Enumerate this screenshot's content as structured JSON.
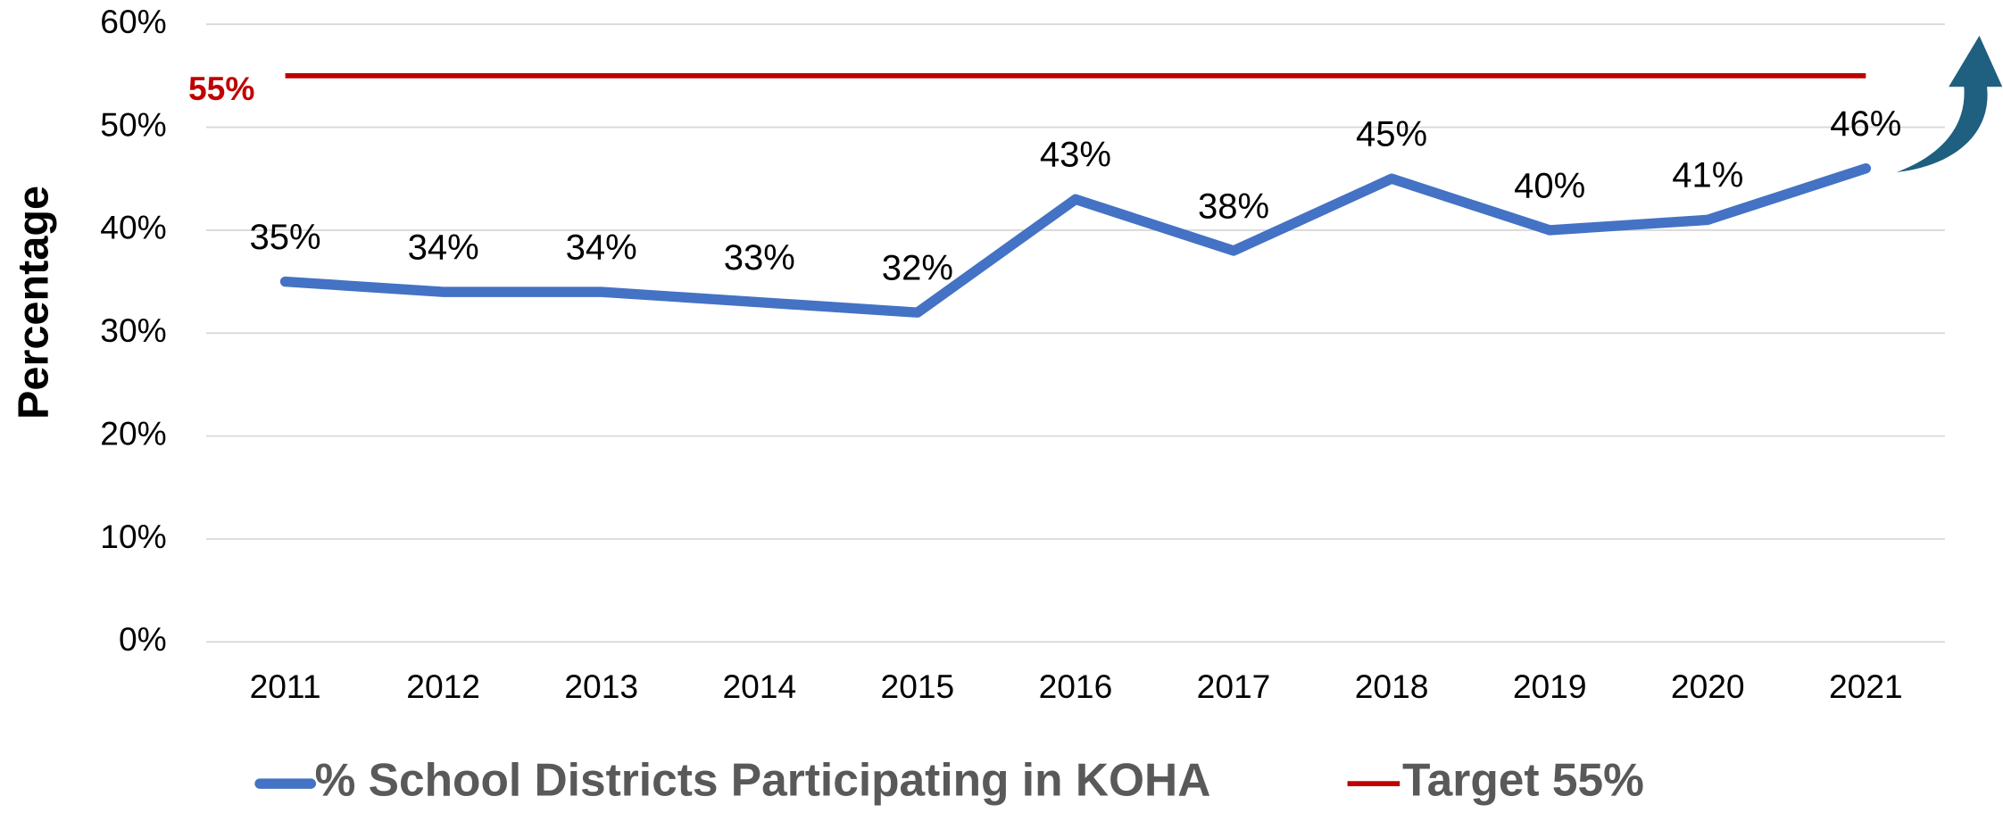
{
  "chart_data": {
    "type": "line",
    "y_label": "Percentage",
    "categories": [
      "2011",
      "2012",
      "2013",
      "2014",
      "2015",
      "2016",
      "2017",
      "2018",
      "2019",
      "2020",
      "2021"
    ],
    "series": [
      {
        "name": "% School Districts Participating in KOHA",
        "color": "#4472c4",
        "values": [
          35,
          34,
          34,
          33,
          32,
          43,
          38,
          45,
          40,
          41,
          46
        ],
        "value_labels": [
          "35%",
          "34%",
          "34%",
          "33%",
          "32%",
          "43%",
          "38%",
          "45%",
          "40%",
          "41%",
          "46%"
        ]
      }
    ],
    "target": {
      "name": "Target 55%",
      "value": 55,
      "label": "55%",
      "color": "#c00000"
    },
    "ylim": [
      0,
      60
    ],
    "yticks": [
      {
        "value": 0,
        "label": "0%"
      },
      {
        "value": 10,
        "label": "10%"
      },
      {
        "value": 20,
        "label": "20%"
      },
      {
        "value": 30,
        "label": "30%"
      },
      {
        "value": 40,
        "label": "40%"
      },
      {
        "value": 50,
        "label": "50%"
      },
      {
        "value": 60,
        "label": "60%"
      }
    ],
    "grid": true
  }
}
